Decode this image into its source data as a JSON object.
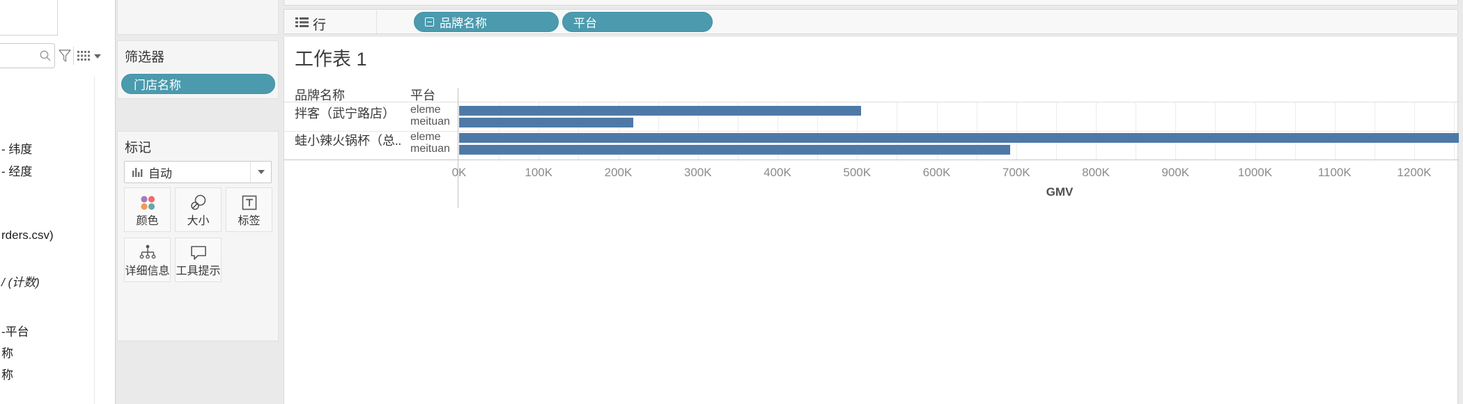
{
  "colors": {
    "pill_teal": "#4b9aae",
    "bar_blue": "#4e79a7",
    "color_dots": [
      "#a77ab8",
      "#ee6b6b",
      "#f09a57",
      "#67a8a3"
    ]
  },
  "data_pane": {
    "search": {
      "value": "",
      "placeholder": ""
    },
    "fields": [
      {
        "label": "- 纬度",
        "italic": false
      },
      {
        "label": "- 经度",
        "italic": false
      },
      {
        "label": "rders.csv)",
        "italic": false
      },
      {
        "label": "/ (计数)",
        "italic": true
      },
      {
        "label": "-平台",
        "italic": false
      },
      {
        "label": "称",
        "italic": false
      },
      {
        "label": "称",
        "italic": false
      }
    ]
  },
  "filters_shelf": {
    "title": "筛选器",
    "pill": {
      "label": "门店名称"
    }
  },
  "marks_card": {
    "title": "标记",
    "mark_type": {
      "label": "自动",
      "icon": "bar-chart-icon"
    },
    "buttons": [
      {
        "label": "颜色",
        "icon": "color-dots-icon"
      },
      {
        "label": "大小",
        "icon": "size-circles-icon"
      },
      {
        "label": "标签",
        "icon": "label-t-icon"
      },
      {
        "label": "详细信息",
        "icon": "detail-tree-icon"
      },
      {
        "label": "工具提示",
        "icon": "tooltip-bubble-icon"
      }
    ]
  },
  "rows_shelf": {
    "label": "行",
    "pills": [
      {
        "label": "品牌名称",
        "collapse_box": true
      },
      {
        "label": "平台",
        "collapse_box": false
      }
    ]
  },
  "sheet": {
    "title": "工作表 1",
    "header_col1": "品牌名称",
    "header_col2": "平台"
  },
  "chart_data": {
    "type": "bar",
    "orientation": "horizontal",
    "title": "工作表 1",
    "xlabel": "GMV",
    "x_unit": "K",
    "x_ticks_k": [
      0,
      100,
      200,
      300,
      400,
      500,
      600,
      700,
      800,
      900,
      1000,
      1100,
      1200
    ],
    "x_visible_max_k": 1255,
    "gridline_step_k": 50,
    "groups": [
      {
        "brand": "拌客（武宁路店）",
        "bars": [
          {
            "platform": "eleme",
            "gmv_k": 505
          },
          {
            "platform": "meituan",
            "gmv_k": 219
          }
        ]
      },
      {
        "brand": "蛙小辣火锅杯（总..",
        "bars": [
          {
            "platform": "eleme",
            "gmv_k": 1260,
            "clipped": true
          },
          {
            "platform": "meituan",
            "gmv_k": 692
          }
        ]
      }
    ]
  }
}
